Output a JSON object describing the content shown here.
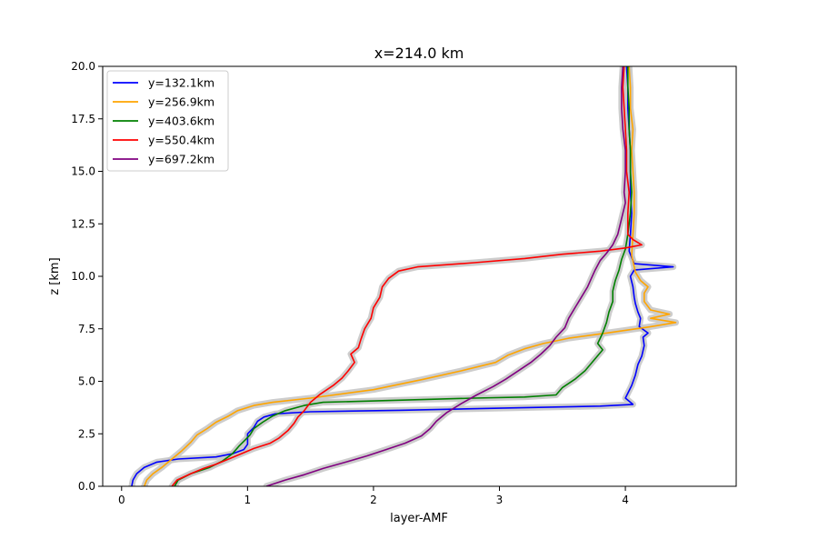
{
  "chart_data": {
    "type": "line",
    "title": "x=214.0 km",
    "xlabel": "layer-AMF",
    "ylabel": "z [km]",
    "xlim": [
      -0.15,
      4.88
    ],
    "ylim": [
      0,
      20
    ],
    "xticks": [
      0,
      1,
      2,
      3,
      4
    ],
    "xtick_labels": [
      "0",
      "1",
      "2",
      "3",
      "4"
    ],
    "yticks": [
      0,
      2.5,
      5,
      7.5,
      10,
      12.5,
      15,
      17.5,
      20
    ],
    "ytick_labels": [
      "0.0",
      "2.5",
      "5.0",
      "7.5",
      "10.0",
      "12.5",
      "15.0",
      "17.5",
      "20.0"
    ],
    "grid": false,
    "legend_position": "top-left",
    "uncertainty_band": "light grey shading around each profile",
    "band_color": "#c8c8c8",
    "series": [
      {
        "name": "y=132.1km",
        "color": "#0000ff",
        "points": [
          [
            0.08,
            0
          ],
          [
            0.09,
            0.3
          ],
          [
            0.12,
            0.6
          ],
          [
            0.18,
            0.9
          ],
          [
            0.28,
            1.15
          ],
          [
            0.45,
            1.3
          ],
          [
            0.75,
            1.4
          ],
          [
            0.88,
            1.55
          ],
          [
            0.97,
            1.75
          ],
          [
            1.0,
            2.0
          ],
          [
            1.0,
            2.5
          ],
          [
            1.05,
            2.8
          ],
          [
            1.08,
            3.1
          ],
          [
            1.13,
            3.3
          ],
          [
            1.22,
            3.45
          ],
          [
            1.5,
            3.55
          ],
          [
            2.2,
            3.62
          ],
          [
            3.0,
            3.72
          ],
          [
            3.8,
            3.82
          ],
          [
            4.06,
            3.9
          ],
          [
            4.0,
            4.2
          ],
          [
            4.05,
            4.8
          ],
          [
            4.08,
            5.3
          ],
          [
            4.1,
            5.8
          ],
          [
            4.13,
            6.2
          ],
          [
            4.15,
            6.7
          ],
          [
            4.14,
            7.1
          ],
          [
            4.18,
            7.3
          ],
          [
            4.11,
            7.6
          ],
          [
            4.12,
            8.0
          ],
          [
            4.1,
            8.3
          ],
          [
            4.08,
            8.7
          ],
          [
            4.07,
            9.0
          ],
          [
            4.06,
            9.5
          ],
          [
            4.04,
            10.0
          ],
          [
            4.07,
            10.3
          ],
          [
            4.38,
            10.45
          ],
          [
            4.07,
            10.6
          ],
          [
            4.03,
            11.2
          ],
          [
            4.04,
            12.0
          ],
          [
            4.05,
            13.0
          ],
          [
            4.04,
            14.0
          ],
          [
            4.04,
            15.0
          ],
          [
            4.04,
            16.0
          ],
          [
            4.03,
            17.0
          ],
          [
            4.02,
            18.0
          ],
          [
            4.02,
            19.0
          ],
          [
            4.01,
            20.0
          ]
        ]
      },
      {
        "name": "y=256.9km",
        "color": "#ffa500",
        "points": [
          [
            0.18,
            0
          ],
          [
            0.2,
            0.3
          ],
          [
            0.25,
            0.6
          ],
          [
            0.32,
            0.9
          ],
          [
            0.4,
            1.3
          ],
          [
            0.48,
            1.7
          ],
          [
            0.55,
            2.1
          ],
          [
            0.6,
            2.45
          ],
          [
            0.68,
            2.75
          ],
          [
            0.75,
            3.05
          ],
          [
            0.85,
            3.35
          ],
          [
            0.92,
            3.6
          ],
          [
            1.05,
            3.85
          ],
          [
            1.2,
            4.0
          ],
          [
            1.5,
            4.2
          ],
          [
            2.0,
            4.6
          ],
          [
            2.4,
            5.1
          ],
          [
            2.7,
            5.5
          ],
          [
            2.97,
            5.9
          ],
          [
            3.07,
            6.25
          ],
          [
            3.2,
            6.55
          ],
          [
            3.35,
            6.8
          ],
          [
            3.55,
            7.05
          ],
          [
            3.85,
            7.3
          ],
          [
            4.2,
            7.6
          ],
          [
            4.4,
            7.8
          ],
          [
            4.2,
            8.0
          ],
          [
            4.35,
            8.2
          ],
          [
            4.2,
            8.4
          ],
          [
            4.15,
            8.8
          ],
          [
            4.15,
            9.2
          ],
          [
            4.18,
            9.5
          ],
          [
            4.12,
            9.8
          ],
          [
            4.08,
            10.2
          ],
          [
            4.05,
            11.0
          ],
          [
            4.06,
            12.0
          ],
          [
            4.07,
            13.0
          ],
          [
            4.07,
            14.0
          ],
          [
            4.06,
            15.0
          ],
          [
            4.05,
            16.0
          ],
          [
            4.06,
            17.0
          ],
          [
            4.04,
            18.0
          ],
          [
            4.04,
            19.0
          ],
          [
            4.03,
            20.0
          ]
        ]
      },
      {
        "name": "y=403.6km",
        "color": "#008000",
        "points": [
          [
            0.42,
            0
          ],
          [
            0.45,
            0.3
          ],
          [
            0.55,
            0.6
          ],
          [
            0.7,
            0.9
          ],
          [
            0.8,
            1.2
          ],
          [
            0.88,
            1.55
          ],
          [
            0.93,
            1.9
          ],
          [
            0.98,
            2.2
          ],
          [
            1.02,
            2.45
          ],
          [
            1.05,
            2.75
          ],
          [
            1.12,
            3.05
          ],
          [
            1.2,
            3.35
          ],
          [
            1.3,
            3.6
          ],
          [
            1.45,
            3.85
          ],
          [
            1.6,
            4.0
          ],
          [
            2.2,
            4.1
          ],
          [
            2.8,
            4.2
          ],
          [
            3.2,
            4.25
          ],
          [
            3.45,
            4.35
          ],
          [
            3.5,
            4.7
          ],
          [
            3.6,
            5.1
          ],
          [
            3.68,
            5.5
          ],
          [
            3.75,
            6.0
          ],
          [
            3.82,
            6.5
          ],
          [
            3.78,
            6.8
          ],
          [
            3.82,
            7.3
          ],
          [
            3.85,
            7.8
          ],
          [
            3.87,
            8.3
          ],
          [
            3.9,
            8.8
          ],
          [
            3.9,
            9.3
          ],
          [
            3.92,
            9.8
          ],
          [
            3.95,
            10.3
          ],
          [
            3.97,
            10.8
          ],
          [
            4.0,
            11.3
          ],
          [
            4.02,
            12.0
          ],
          [
            4.03,
            12.5
          ],
          [
            4.04,
            13.0
          ],
          [
            4.05,
            14.0
          ],
          [
            4.04,
            15.0
          ],
          [
            4.04,
            16.0
          ],
          [
            4.03,
            17.0
          ],
          [
            4.03,
            18.0
          ],
          [
            4.02,
            19.0
          ],
          [
            4.02,
            20.0
          ]
        ]
      },
      {
        "name": "y=550.4km",
        "color": "#ff0000",
        "points": [
          [
            0.4,
            0
          ],
          [
            0.44,
            0.3
          ],
          [
            0.55,
            0.6
          ],
          [
            0.65,
            0.85
          ],
          [
            0.75,
            1.05
          ],
          [
            0.85,
            1.3
          ],
          [
            0.95,
            1.55
          ],
          [
            1.05,
            1.8
          ],
          [
            1.18,
            2.05
          ],
          [
            1.25,
            2.3
          ],
          [
            1.32,
            2.65
          ],
          [
            1.37,
            3.0
          ],
          [
            1.4,
            3.3
          ],
          [
            1.45,
            3.6
          ],
          [
            1.5,
            4.0
          ],
          [
            1.58,
            4.4
          ],
          [
            1.68,
            4.8
          ],
          [
            1.75,
            5.15
          ],
          [
            1.8,
            5.5
          ],
          [
            1.85,
            5.9
          ],
          [
            1.82,
            6.3
          ],
          [
            1.88,
            6.6
          ],
          [
            1.9,
            7.0
          ],
          [
            1.93,
            7.5
          ],
          [
            1.98,
            8.0
          ],
          [
            2.0,
            8.5
          ],
          [
            2.05,
            9.0
          ],
          [
            2.07,
            9.5
          ],
          [
            2.12,
            9.9
          ],
          [
            2.2,
            10.25
          ],
          [
            2.35,
            10.45
          ],
          [
            2.8,
            10.65
          ],
          [
            3.2,
            10.85
          ],
          [
            3.5,
            11.05
          ],
          [
            3.8,
            11.2
          ],
          [
            4.0,
            11.35
          ],
          [
            4.13,
            11.5
          ],
          [
            4.06,
            11.75
          ],
          [
            4.02,
            12.0
          ],
          [
            4.02,
            13.0
          ],
          [
            4.03,
            14.0
          ],
          [
            4.01,
            15.0
          ],
          [
            4.01,
            16.0
          ],
          [
            4.0,
            17.0
          ],
          [
            3.99,
            18.0
          ],
          [
            3.98,
            19.0
          ],
          [
            3.99,
            20.0
          ]
        ]
      },
      {
        "name": "y=697.2km",
        "color": "#800080",
        "points": [
          [
            1.15,
            0
          ],
          [
            1.3,
            0.3
          ],
          [
            1.45,
            0.55
          ],
          [
            1.6,
            0.85
          ],
          [
            1.78,
            1.15
          ],
          [
            1.95,
            1.45
          ],
          [
            2.1,
            1.75
          ],
          [
            2.25,
            2.05
          ],
          [
            2.38,
            2.4
          ],
          [
            2.45,
            2.75
          ],
          [
            2.5,
            3.1
          ],
          [
            2.58,
            3.5
          ],
          [
            2.7,
            3.95
          ],
          [
            2.82,
            4.35
          ],
          [
            2.95,
            4.75
          ],
          [
            3.05,
            5.1
          ],
          [
            3.15,
            5.5
          ],
          [
            3.25,
            5.9
          ],
          [
            3.33,
            6.3
          ],
          [
            3.4,
            6.7
          ],
          [
            3.45,
            7.1
          ],
          [
            3.52,
            7.55
          ],
          [
            3.55,
            8.0
          ],
          [
            3.6,
            8.5
          ],
          [
            3.65,
            9.0
          ],
          [
            3.7,
            9.5
          ],
          [
            3.73,
            9.9
          ],
          [
            3.76,
            10.3
          ],
          [
            3.8,
            10.75
          ],
          [
            3.85,
            11.1
          ],
          [
            3.9,
            11.5
          ],
          [
            3.94,
            12.0
          ],
          [
            3.96,
            12.5
          ],
          [
            3.98,
            13.0
          ],
          [
            4.0,
            13.5
          ],
          [
            3.99,
            14.0
          ],
          [
            4.0,
            15.0
          ],
          [
            4.0,
            16.0
          ],
          [
            3.98,
            17.0
          ],
          [
            3.97,
            18.0
          ],
          [
            3.97,
            19.0
          ],
          [
            3.98,
            20.0
          ]
        ]
      }
    ]
  }
}
